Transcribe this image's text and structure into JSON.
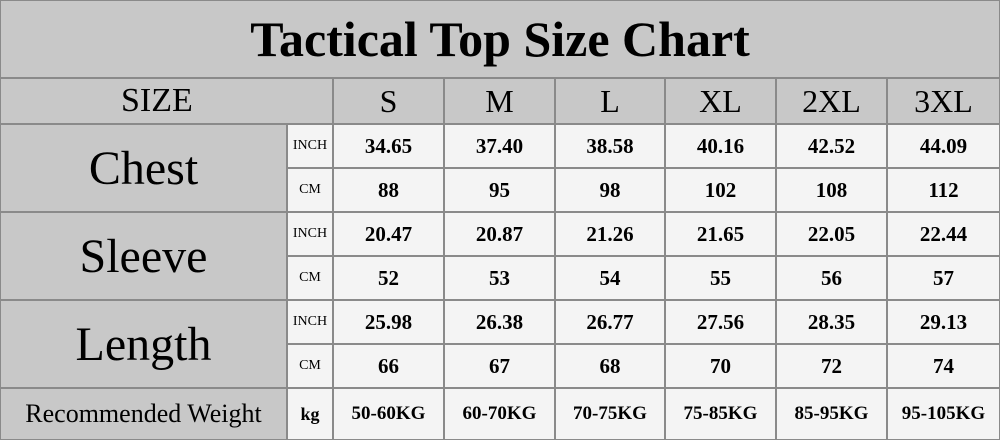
{
  "title": "Tactical Top Size Chart",
  "header": {
    "label": "SIZE",
    "sizes": [
      "S",
      "M",
      "L",
      "XL",
      "2XL",
      "3XL"
    ]
  },
  "measurements": [
    {
      "name": "Chest",
      "rows": [
        {
          "unit": "INCH",
          "values": [
            "34.65",
            "37.40",
            "38.58",
            "40.16",
            "42.52",
            "44.09"
          ]
        },
        {
          "unit": "CM",
          "values": [
            "88",
            "95",
            "98",
            "102",
            "108",
            "112"
          ]
        }
      ]
    },
    {
      "name": "Sleeve",
      "rows": [
        {
          "unit": "INCH",
          "values": [
            "20.47",
            "20.87",
            "21.26",
            "21.65",
            "22.05",
            "22.44"
          ]
        },
        {
          "unit": "CM",
          "values": [
            "52",
            "53",
            "54",
            "55",
            "56",
            "57"
          ]
        }
      ]
    },
    {
      "name": "Length",
      "rows": [
        {
          "unit": "INCH",
          "values": [
            "25.98",
            "26.38",
            "26.77",
            "27.56",
            "28.35",
            "29.13"
          ]
        },
        {
          "unit": "CM",
          "values": [
            "66",
            "67",
            "68",
            "70",
            "72",
            "74"
          ]
        }
      ]
    }
  ],
  "weight": {
    "label": "Recommended Weight",
    "unit": "kg",
    "values": [
      "50-60KG",
      "60-70KG",
      "70-75KG",
      "75-85KG",
      "85-95KG",
      "95-105KG"
    ]
  }
}
